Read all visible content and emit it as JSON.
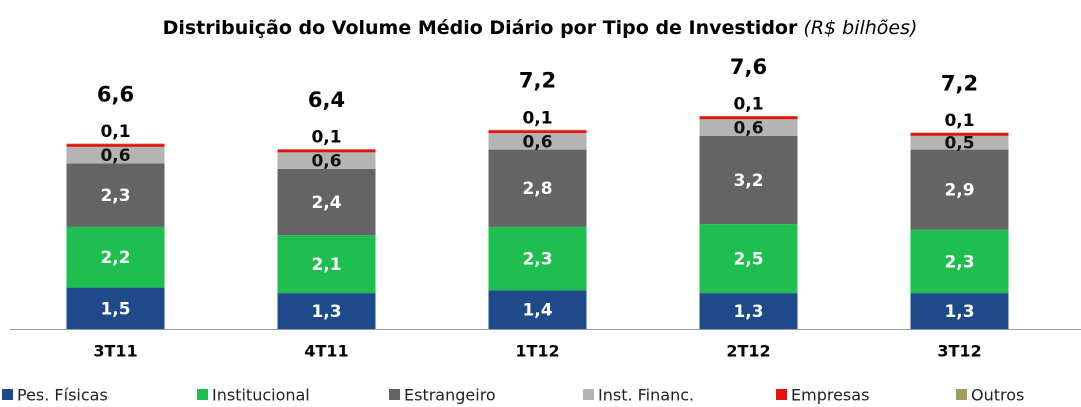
{
  "chart_data": {
    "type": "stacked_bar",
    "title": "Distribuição do Volume Médio Diário por Tipo de Investidor",
    "subtitle": "(R$ bilhões)",
    "categories": [
      "3T11",
      "4T11",
      "1T12",
      "2T12",
      "3T12"
    ],
    "totals": [
      6.6,
      6.4,
      7.2,
      7.6,
      7.2
    ],
    "totals_labels": [
      "6,6",
      "6,4",
      "7,2",
      "7,6",
      "7,2"
    ],
    "series": [
      {
        "name": "Pes. Físicas",
        "color": "#1f4a8a",
        "values": [
          1.5,
          1.3,
          1.4,
          1.3,
          1.3
        ],
        "value_labels": [
          "1,5",
          "1,3",
          "1,4",
          "1,3",
          "1,3"
        ]
      },
      {
        "name": "Institucional",
        "color": "#1fbf4f",
        "values": [
          2.2,
          2.1,
          2.3,
          2.5,
          2.3
        ],
        "value_labels": [
          "2,2",
          "2,1",
          "2,3",
          "2,5",
          "2,3"
        ]
      },
      {
        "name": "Estrangeiro",
        "color": "#646464",
        "values": [
          2.3,
          2.4,
          2.8,
          3.2,
          2.9
        ],
        "value_labels": [
          "2,3",
          "2,4",
          "2,8",
          "3,2",
          "2,9"
        ]
      },
      {
        "name": "Inst. Financ.",
        "color": "#b4b4b4",
        "values": [
          0.6,
          0.6,
          0.6,
          0.6,
          0.5
        ],
        "value_labels": [
          "0,6",
          "0,6",
          "0,6",
          "0,6",
          "0,5"
        ]
      },
      {
        "name": "Empresas",
        "color": "#e81010",
        "values": [
          0.1,
          0.1,
          0.1,
          0.1,
          0.1
        ],
        "value_labels": [
          "0,1",
          "0,1",
          "0,1",
          "0,1",
          "0,1"
        ]
      },
      {
        "name": "Outros",
        "color": "#a09c5c",
        "values": [
          0.02,
          0.02,
          0.02,
          0.02,
          0.02
        ]
      }
    ]
  }
}
